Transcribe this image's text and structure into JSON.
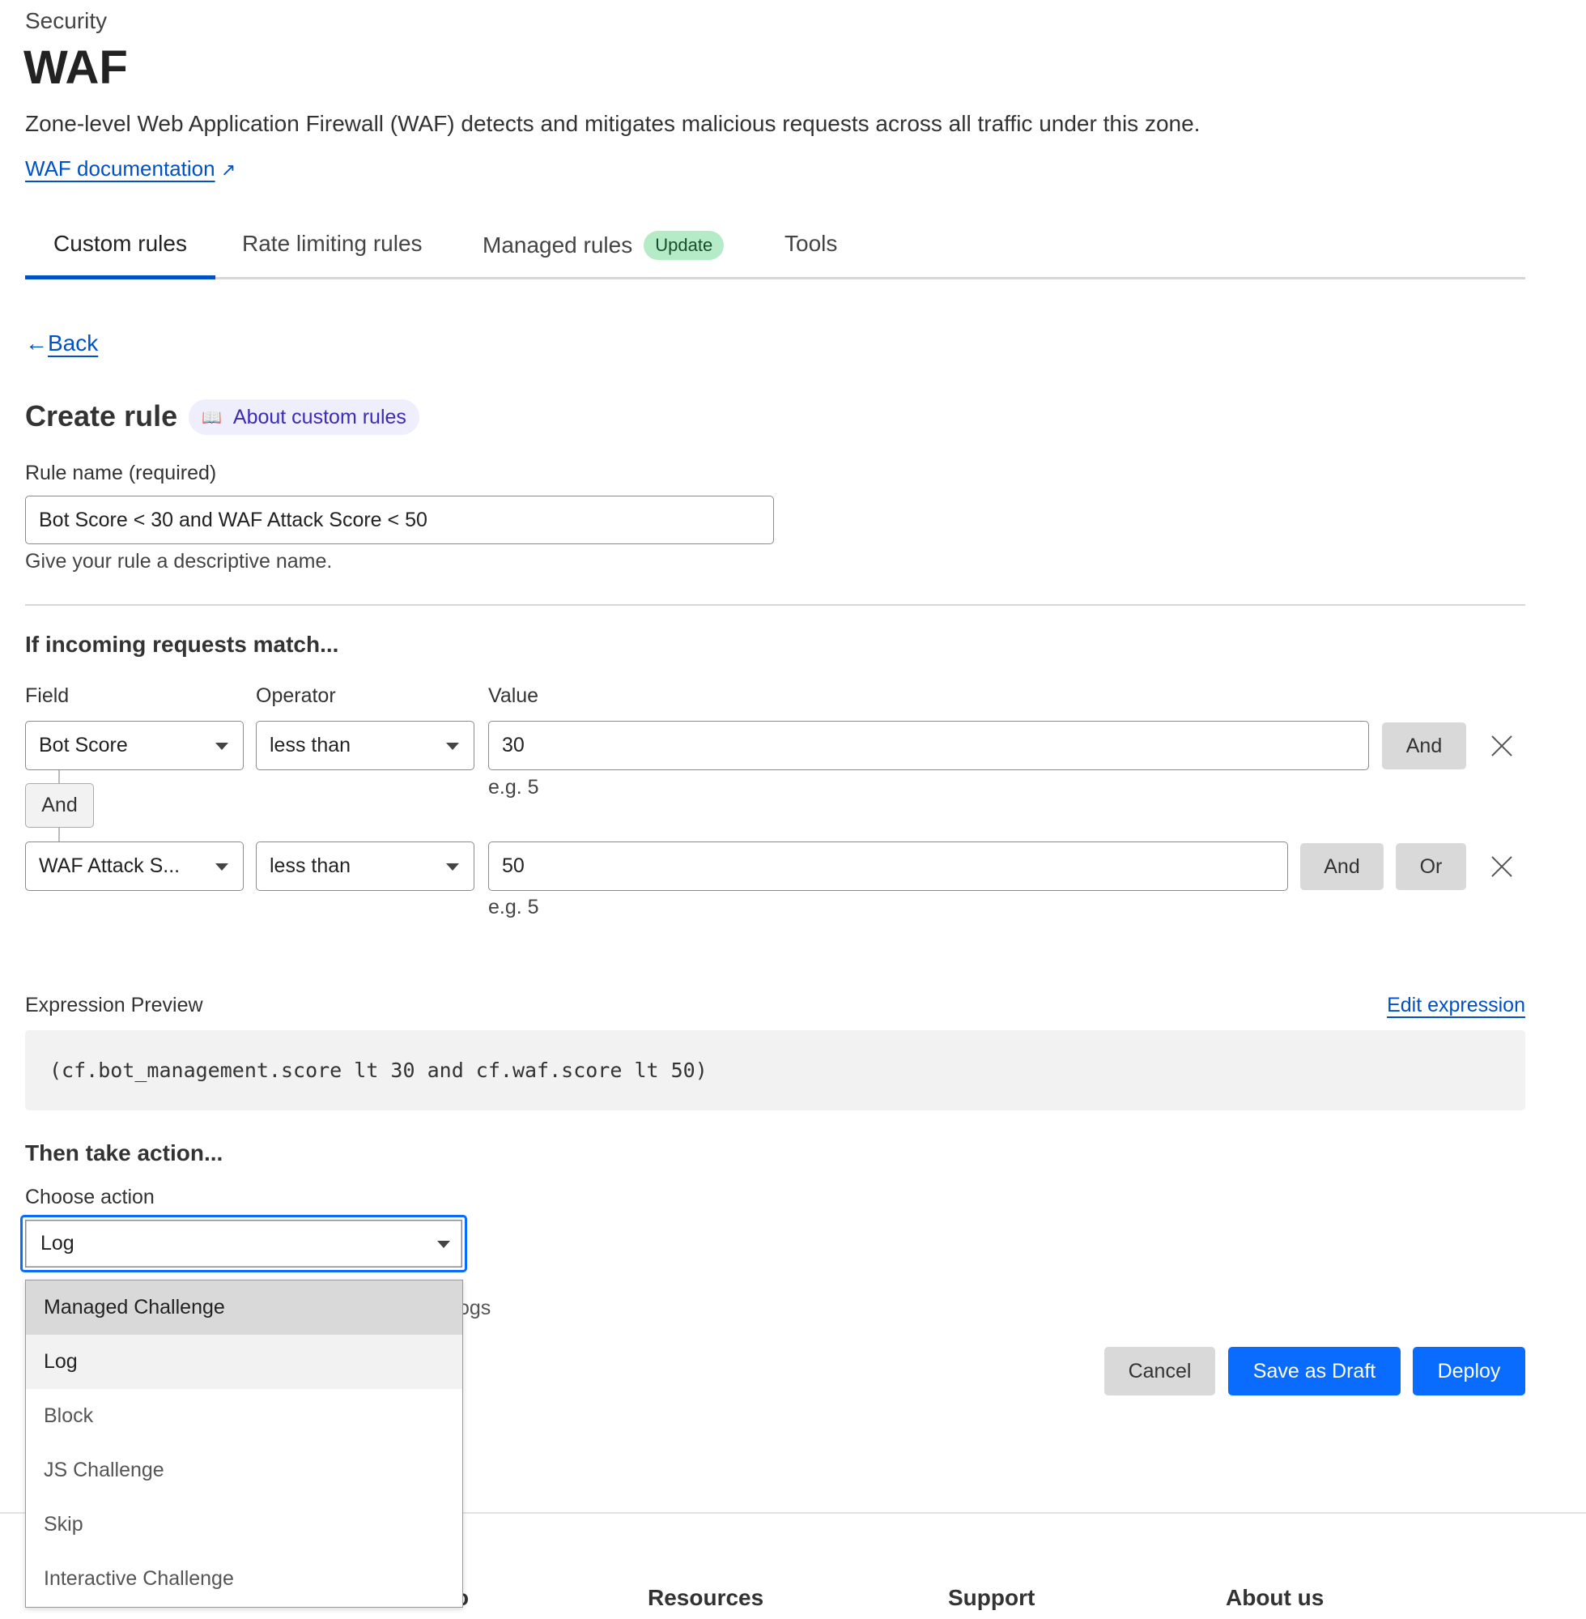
{
  "header": {
    "breadcrumb": "Security",
    "title": "WAF",
    "description": "Zone-level Web Application Firewall (WAF) detects and mitigates malicious requests across all traffic under this zone.",
    "doc_link": "WAF documentation"
  },
  "tabs": [
    {
      "label": "Custom rules",
      "active": true
    },
    {
      "label": "Rate limiting rules"
    },
    {
      "label": "Managed rules",
      "badge": "Update"
    },
    {
      "label": "Tools"
    }
  ],
  "back": "Back",
  "form": {
    "title": "Create rule",
    "about_link": "About custom rules",
    "rule_name_label": "Rule name (required)",
    "rule_name_value": "Bot Score < 30 and WAF Attack Score < 50",
    "rule_name_help": "Give your rule a descriptive name.",
    "match_heading": "If incoming requests match...",
    "col_field": "Field",
    "col_operator": "Operator",
    "col_value": "Value",
    "conditions": [
      {
        "field": "Bot Score",
        "operator": "less than",
        "value": "30",
        "hint": "e.g. 5",
        "and": "And"
      },
      {
        "field": "WAF Attack S...",
        "operator": "less than",
        "value": "50",
        "hint": "e.g. 5",
        "and": "And",
        "or": "Or"
      }
    ],
    "connector": "And",
    "expression_label": "Expression Preview",
    "edit_expression": "Edit expression",
    "expression": "(cf.bot_management.score lt 30 and cf.waf.score lt 50)",
    "action_heading": "Then take action...",
    "choose_action": "Choose action",
    "action_value": "Log",
    "hidden_partial": "ogs",
    "action_options": [
      "Managed Challenge",
      "Log",
      "Block",
      "JS Challenge",
      "Skip",
      "Interactive Challenge"
    ],
    "cancel": "Cancel",
    "save_draft": "Save as Draft",
    "deploy": "Deploy"
  },
  "footer": {
    "headings": [
      "o",
      "Resources",
      "Support",
      "About us"
    ]
  },
  "colors": {
    "accent": "#0a6cff",
    "link": "#0051c3",
    "badge": "#b5ecc7"
  }
}
